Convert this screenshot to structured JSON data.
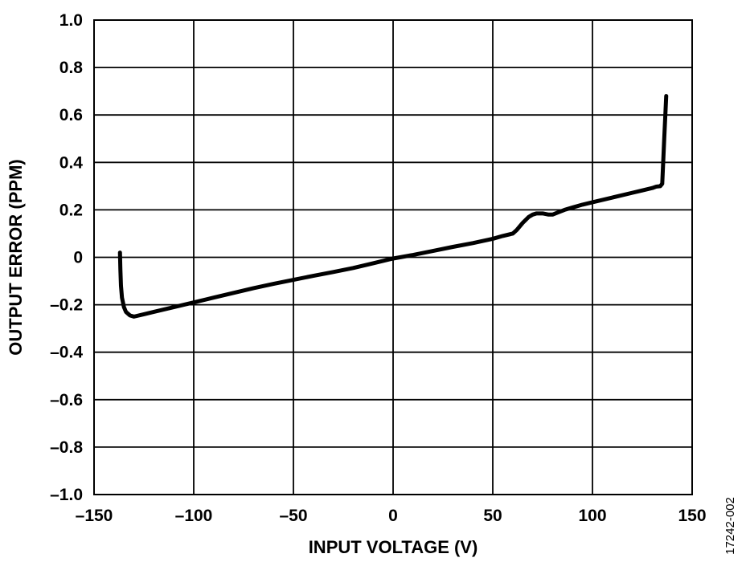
{
  "chart_data": {
    "type": "line",
    "title": "",
    "xlabel": "INPUT VOLTAGE (V)",
    "ylabel": "OUTPUT ERROR (PPM)",
    "xlim": [
      -150,
      150
    ],
    "ylim": [
      -1.0,
      1.0
    ],
    "x_ticks": [
      -150,
      -100,
      -50,
      0,
      50,
      100,
      150
    ],
    "x_tick_labels": [
      "–150",
      "–100",
      "–50",
      "0",
      "50",
      "100",
      "150"
    ],
    "y_ticks": [
      1.0,
      0.8,
      0.6,
      0.4,
      0.2,
      0,
      -0.2,
      -0.4,
      -0.6,
      -0.8,
      -1.0
    ],
    "y_tick_labels": [
      "1.0",
      "0.8",
      "0.6",
      "0.4",
      "0.2",
      "0",
      "–0.2",
      "–0.4",
      "–0.6",
      "–0.8",
      "–1.0"
    ],
    "grid": true,
    "legend": "none",
    "line_color": "#000000",
    "series": [
      {
        "x": [
          -137,
          -136.8,
          -136.5,
          -136,
          -135,
          -134,
          -132,
          -130,
          -125,
          -120,
          -110,
          -100,
          -90,
          -80,
          -70,
          -60,
          -50,
          -40,
          -30,
          -20,
          -10,
          0,
          10,
          20,
          30,
          40,
          50,
          55,
          60,
          62,
          65,
          68,
          70,
          72,
          75,
          78,
          80,
          83,
          86,
          90,
          95,
          100,
          110,
          120,
          125,
          130,
          132,
          134,
          135,
          136,
          137
        ],
        "y": [
          0.02,
          -0.05,
          -0.12,
          -0.17,
          -0.21,
          -0.23,
          -0.245,
          -0.25,
          -0.24,
          -0.23,
          -0.21,
          -0.19,
          -0.17,
          -0.15,
          -0.13,
          -0.112,
          -0.095,
          -0.078,
          -0.062,
          -0.045,
          -0.025,
          -0.005,
          0.01,
          0.027,
          0.044,
          0.06,
          0.078,
          0.09,
          0.1,
          0.115,
          0.145,
          0.17,
          0.18,
          0.185,
          0.185,
          0.18,
          0.18,
          0.19,
          0.2,
          0.21,
          0.222,
          0.232,
          0.252,
          0.272,
          0.282,
          0.292,
          0.298,
          0.3,
          0.31,
          0.5,
          0.68
        ]
      }
    ]
  },
  "figure_id": "17242-002"
}
